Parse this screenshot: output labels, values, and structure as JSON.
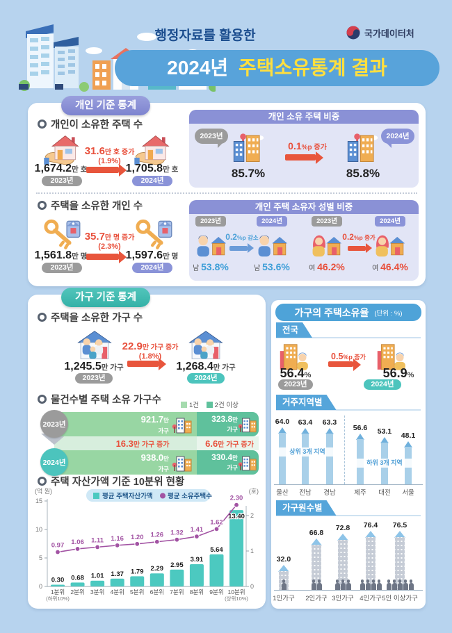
{
  "header": {
    "subtitle": "행정자료를 활용한",
    "title_year": "2024년",
    "title_rest": "주택소유통계 결과",
    "logo": "국가데이터처"
  },
  "individual": {
    "banner": "개인 기준 통계",
    "owned_houses": {
      "heading": "개인이 소유한 주택 수",
      "v2023": "1,674.2",
      "u2023": "만 호",
      "b2023": "2023년",
      "chg": "31.6",
      "chg_unit": "만 호 증가",
      "chg_pct": "(1.9%)",
      "v2024": "1,705.8",
      "u2024": "만 호",
      "b2024": "2024년"
    },
    "ratio": {
      "heading": "개인 소유 주택 비중",
      "b2023": "2023년",
      "v2023": "85.7%",
      "chg": "0.1",
      "chg_unit": "%p 증가",
      "b2024": "2024년",
      "v2024": "85.8%"
    },
    "owners": {
      "heading": "주택을 소유한 개인 수",
      "v2023": "1,561.8",
      "u2023": "만 명",
      "b2023": "2023년",
      "chg": "35.7",
      "chg_unit": "만 명 증가",
      "chg_pct": "(2.3%)",
      "v2024": "1,597.6",
      "u2024": "만 명",
      "b2024": "2024년"
    },
    "gender": {
      "heading": "개인 주택 소유자 성별 비중",
      "m_b2023": "2023년",
      "m_b2024": "2024년",
      "f_b2023": "2023년",
      "f_b2024": "2024년",
      "m_label": "남",
      "f_label": "여",
      "m_v2023": "53.8%",
      "m_chg": "0.2",
      "m_chg_unit": "%p 감소",
      "m_v2024": "53.6%",
      "f_v2023": "46.2%",
      "f_chg": "0.2",
      "f_chg_unit": "%p 증가",
      "f_v2024": "46.4%"
    }
  },
  "household": {
    "banner": "가구 기준 통계",
    "owned": {
      "heading": "주택을 소유한 가구 수",
      "v2023": "1,245.5",
      "u2023": "만 가구",
      "b2023": "2023년",
      "chg": "22.9",
      "chg_unit": "만 가구 증가",
      "chg_pct": "(1.8%)",
      "v2024": "1,268.4",
      "u2024": "만 가구",
      "b2024": "2024년"
    },
    "by_count": {
      "heading": "물건수별 주택 소유 가구수",
      "legend1": "1건",
      "legend2": "2건 이상",
      "y2023": "2023년",
      "y2024": "2024년",
      "r1_one_v": "921.7",
      "r1_one_s": "만",
      "r1_one_u": "가구",
      "r1_two_v": "323.8",
      "r1_two_s": "만",
      "r1_two_u": "가구",
      "chg_one": "16.3",
      "chg_one_rest": "만 가구 증가",
      "chg_two": "6.6",
      "chg_two_rest": "만 가구 증가",
      "r2_one_v": "938.0",
      "r2_one_s": "만",
      "r2_one_u": "가구",
      "r2_two_v": "330.4",
      "r2_two_s": "만",
      "r2_two_u": "가구"
    },
    "decile_heading": "주택 자산가액 기준 10분위 현황"
  },
  "ownership": {
    "banner": "가구의 주택소유율",
    "unit": "(단위 : %)",
    "national": {
      "tab": "전국",
      "v2023": "56.4",
      "pct": "%",
      "b2023": "2023년",
      "chg": "0.5",
      "chg_unit": "%p 증가",
      "v2024": "56.9",
      "b2024": "2024년"
    },
    "region_tab": "거주지역별",
    "size_tab": "가구원수별"
  },
  "chart_data": [
    {
      "id": "decile",
      "type": "bar",
      "title": "주택 자산가액 기준 10분위 현황",
      "categories": [
        "1분위",
        "2분위",
        "3분위",
        "4분위",
        "5분위",
        "6분위",
        "7분위",
        "8분위",
        "9분위",
        "10분위"
      ],
      "category_notes": [
        "(하위10%)",
        "",
        "",
        "",
        "",
        "",
        "",
        "",
        "",
        "(상위10%)"
      ],
      "series": [
        {
          "name": "평균 주택자산가액",
          "type": "bar",
          "axis": "left",
          "color": "#4cc9c0",
          "values": [
            0.3,
            0.68,
            1.01,
            1.37,
            1.79,
            2.29,
            2.95,
            3.91,
            5.64,
            13.4
          ]
        },
        {
          "name": "평균 소유주택수",
          "type": "line",
          "axis": "right",
          "color": "#a253a3",
          "values": [
            0.97,
            1.06,
            1.11,
            1.16,
            1.2,
            1.26,
            1.32,
            1.41,
            1.62,
            2.3
          ]
        }
      ],
      "left_axis": {
        "label": "(억 원)",
        "ticks": [
          0,
          5,
          10,
          15
        ],
        "max": 15
      },
      "right_axis": {
        "label": "(호)",
        "ticks": [
          0,
          1,
          2
        ],
        "max": 2.45
      },
      "legend_position": "top"
    },
    {
      "id": "region",
      "type": "bar",
      "title": "거주지역별",
      "ylim": [
        0,
        64
      ],
      "bar_color": "#a9d0e9",
      "groups": [
        {
          "note": "상위 3개 지역",
          "categories": [
            "울산",
            "전남",
            "경남"
          ],
          "values": [
            64.0,
            63.4,
            63.3
          ]
        },
        {
          "note": "하위 3개 지역",
          "categories": [
            "제주",
            "대전",
            "서울"
          ],
          "values": [
            56.6,
            53.1,
            48.1
          ]
        }
      ]
    },
    {
      "id": "household_size",
      "type": "bar",
      "title": "가구원수별",
      "ylim": [
        0,
        76.5
      ],
      "bar_color": "#c6ccd6",
      "categories": [
        "1인가구",
        "2인가구",
        "3인가구",
        "4인가구",
        "5인 이상가구"
      ],
      "values": [
        32.0,
        66.8,
        72.8,
        76.4,
        76.5
      ],
      "people_counts": [
        1,
        2,
        3,
        4,
        5
      ]
    }
  ]
}
